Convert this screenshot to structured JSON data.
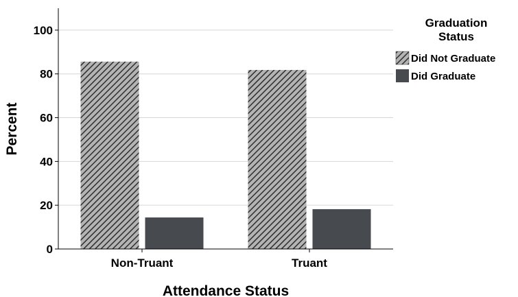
{
  "chart_data": {
    "type": "bar",
    "categories": [
      "Non-Truant",
      "Truant"
    ],
    "series": [
      {
        "name": "Did Not Graduate",
        "values": [
          85.6,
          81.8
        ],
        "pattern": "hatched",
        "color": "#999999"
      },
      {
        "name": "Did Graduate",
        "values": [
          14.4,
          18.2
        ],
        "pattern": "solid",
        "color": "#474a4f"
      }
    ],
    "xlabel": "Attendance Status",
    "ylabel": "Percent",
    "ylim": [
      0,
      110
    ],
    "yticks": [
      "0",
      "20",
      "40",
      "60",
      "80",
      "100"
    ],
    "grid": true,
    "legend": {
      "title_line1": "Graduation",
      "title_line2": "Status",
      "placement": "right",
      "items": [
        "Did Not Graduate",
        "Did Graduate"
      ]
    }
  }
}
